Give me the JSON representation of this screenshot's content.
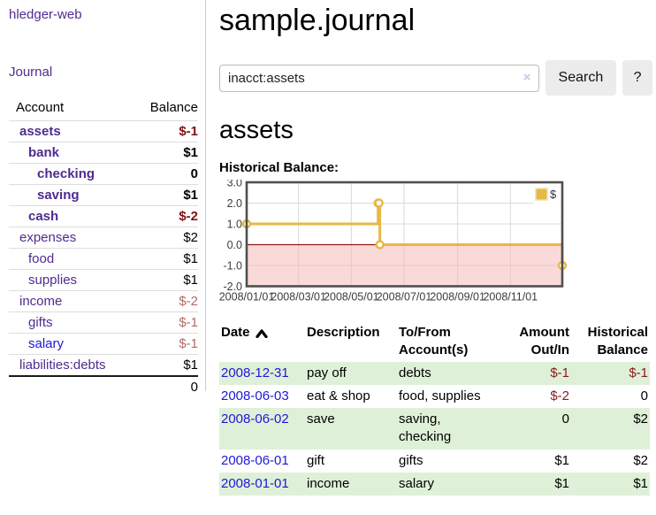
{
  "app": {
    "brand": "hledger-web",
    "nav_journal": "Journal"
  },
  "sidebar": {
    "account_header": "Account",
    "balance_header": "Balance",
    "accounts": [
      {
        "name": "assets",
        "balance": "$-1",
        "depth": 1,
        "bold": true,
        "neg": "strong"
      },
      {
        "name": "bank",
        "balance": "$1",
        "depth": 2,
        "bold": true
      },
      {
        "name": "checking",
        "balance": "0",
        "depth": 3,
        "bold": true
      },
      {
        "name": "saving",
        "balance": "$1",
        "depth": 3,
        "bold": true
      },
      {
        "name": "cash",
        "balance": "$-2",
        "depth": 2,
        "bold": true,
        "neg": "strong"
      },
      {
        "name": "expenses",
        "balance": "$2",
        "depth": 1
      },
      {
        "name": "food",
        "balance": "$1",
        "depth": 2
      },
      {
        "name": "supplies",
        "balance": "$1",
        "depth": 2
      },
      {
        "name": "income",
        "balance": "$-2",
        "depth": 1,
        "neg": "soft"
      },
      {
        "name": "gifts",
        "balance": "$-1",
        "depth": 2,
        "neg": "soft"
      },
      {
        "name": "salary",
        "balance": "$-1",
        "depth": 2,
        "neg": "soft",
        "link_color": "blue"
      },
      {
        "name": "liabilities:debts",
        "balance": "$1",
        "depth": 1
      }
    ],
    "total": "0"
  },
  "header": {
    "title": "sample.journal"
  },
  "search": {
    "value": "inacct:assets",
    "clear_icon": "×",
    "button_label": "Search",
    "help_label": "?"
  },
  "account_page": {
    "heading": "assets",
    "chart_label": "Historical Balance:"
  },
  "chart_data": {
    "type": "line",
    "title": "Historical Balance:",
    "series": [
      {
        "name": "$",
        "color": "#e6b845",
        "step": true,
        "points": [
          [
            "2008-01-01",
            1
          ],
          [
            "2008-06-01",
            2
          ],
          [
            "2008-06-02",
            2
          ],
          [
            "2008-06-03",
            0
          ],
          [
            "2008-12-31",
            -1
          ]
        ]
      }
    ],
    "x_ticks": [
      "2008/01/01",
      "2008/03/01",
      "2008/05/01",
      "2008/07/01",
      "2008/09/01",
      "2008/11/01"
    ],
    "y_ticks": [
      3,
      2,
      1,
      0,
      -1,
      -2
    ],
    "ylim": [
      -2,
      3
    ],
    "xlim": [
      "2008-01-01",
      "2008-12-31"
    ],
    "grid": true,
    "legend_position": "top-right",
    "negative_region_color": "#f5baba",
    "zero_line_color": "#8b1a1a"
  },
  "register": {
    "columns": {
      "date": "Date",
      "description": "Description",
      "accounts": "To/From Account(s)",
      "amount": "Amount Out/In",
      "balance": "Historical Balance"
    },
    "rows": [
      {
        "date": "2008-12-31",
        "description": "pay off",
        "accounts": "debts",
        "amount": "$-1",
        "amount_neg": true,
        "balance": "$-1",
        "balance_neg": true
      },
      {
        "date": "2008-06-03",
        "description": "eat & shop",
        "accounts": "food, supplies",
        "amount": "$-2",
        "amount_neg": true,
        "balance": "0",
        "balance_neg": false
      },
      {
        "date": "2008-06-02",
        "description": "save",
        "accounts": "saving,\nchecking",
        "amount": "0",
        "amount_neg": false,
        "balance": "$2",
        "balance_neg": false
      },
      {
        "date": "2008-06-01",
        "description": "gift",
        "accounts": "gifts",
        "amount": "$1",
        "amount_neg": false,
        "balance": "$2",
        "balance_neg": false
      },
      {
        "date": "2008-01-01",
        "description": "income",
        "accounts": "salary",
        "amount": "$1",
        "amount_neg": false,
        "balance": "$1",
        "balance_neg": false
      }
    ]
  }
}
